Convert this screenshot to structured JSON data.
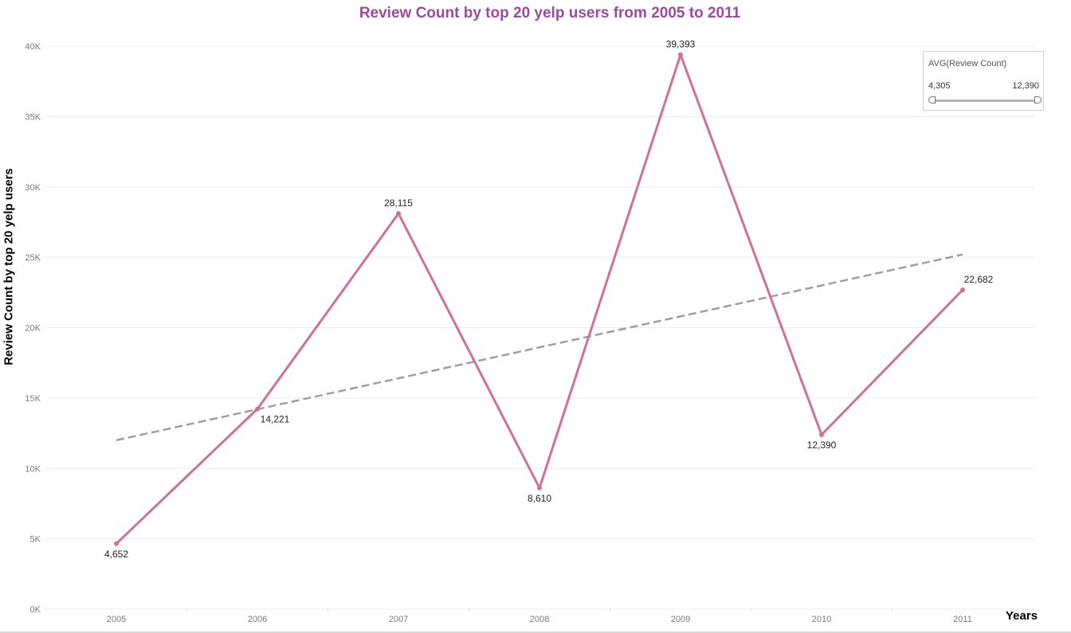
{
  "chart_data": {
    "type": "line",
    "title": "Review Count by top 20 yelp users from 2005 to 2011",
    "xlabel": "Years",
    "ylabel": "Review Count by top 20 yelp users",
    "categories": [
      "2005",
      "2006",
      "2007",
      "2008",
      "2009",
      "2010",
      "2011"
    ],
    "series": [
      {
        "values": [
          4652,
          14221,
          28115,
          8610,
          39393,
          12390,
          22682
        ],
        "labels": [
          "4,652",
          "14,221",
          "28,115",
          "8,610",
          "39,393",
          "12,390",
          "22,682"
        ]
      }
    ],
    "trend_line": {
      "style": "dashed",
      "start": 12000,
      "end": 25200
    },
    "y_ticks": [
      0,
      5000,
      10000,
      15000,
      20000,
      25000,
      30000,
      35000,
      40000
    ],
    "y_tick_labels": [
      "0K",
      "5K",
      "10K",
      "15K",
      "20K",
      "25K",
      "30K",
      "35K",
      "40K"
    ],
    "ylim": [
      0,
      40000
    ],
    "grid": true,
    "legend": {
      "title": "AVG(Review Count)",
      "min_label": "4,305",
      "max_label": "12,390",
      "placement": "top-right"
    },
    "colors": {
      "title": "#9b4aa0",
      "line": "#cf7095",
      "trend": "#9e9e9e",
      "grid": "#ececec",
      "tick_text": "#7a7a7a"
    }
  }
}
